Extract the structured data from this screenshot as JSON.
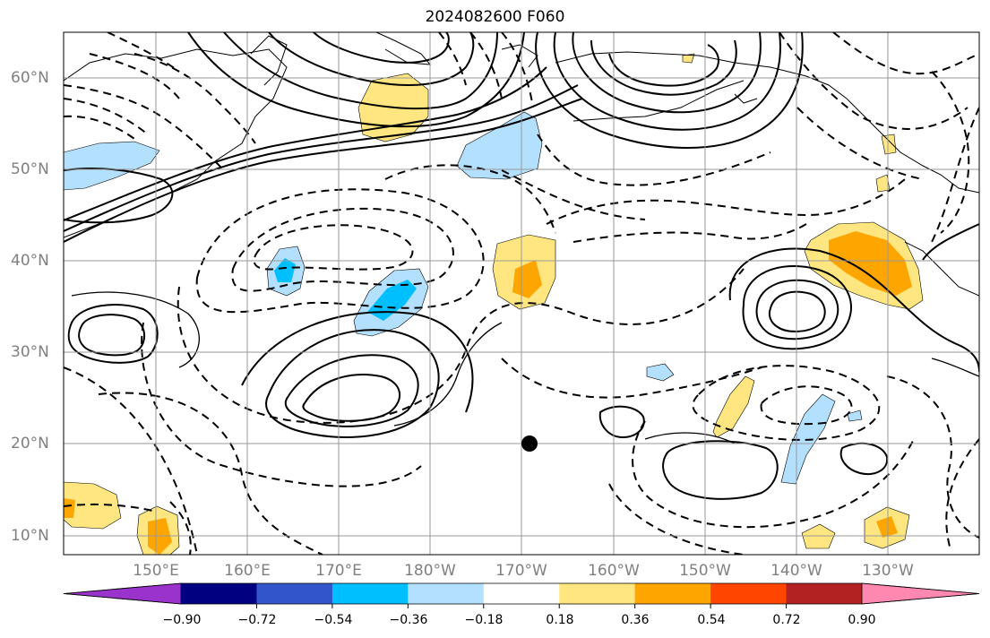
{
  "title": "2024082600 F060",
  "lat_labels": [
    "60°N",
    "50°N",
    "40°N",
    "30°N",
    "20°N",
    "10°N"
  ],
  "lon_labels": [
    "150°E",
    "160°E",
    "170°E",
    "180°W",
    "170°W",
    "160°W",
    "150°W",
    "140°W",
    "130°W"
  ],
  "colorbar": {
    "labels": [
      "−0.90",
      "−0.72",
      "−0.54",
      "−0.36",
      "−0.18",
      "0.18",
      "0.36",
      "0.54",
      "0.72",
      "0.90"
    ],
    "colors": [
      "#9933cc",
      "#000080",
      "#3355cc",
      "#00bfff",
      "#b3e0ff",
      "#ffffff",
      "#ffe680",
      "#ffa500",
      "#ff4500",
      "#b22222",
      "#ff88b0"
    ]
  },
  "marker": {
    "label": "storm-center"
  }
}
